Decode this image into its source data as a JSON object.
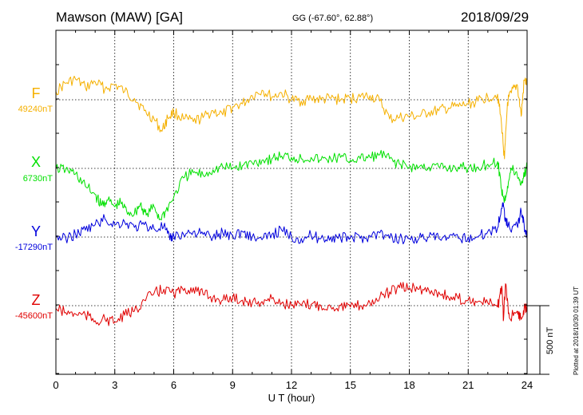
{
  "header": {
    "station": "Mawson (MAW)  [GA]",
    "coords": "GG (-67.60°,  62.88°)",
    "date": "2018/09/29"
  },
  "footer": {
    "plotted": "Plotted at 2018/10/30 01:39 UT"
  },
  "scale": {
    "label": "500 nT"
  },
  "colors": {
    "F": "#f5b000",
    "X": "#00e000",
    "Y": "#0000dd",
    "Z": "#e00000"
  },
  "chart_data": {
    "type": "line",
    "title": "Mawson (MAW)  [GA]",
    "xlabel": "U T (hour)",
    "xlim": [
      0,
      24
    ],
    "xticks": [
      0,
      3,
      6,
      9,
      12,
      15,
      18,
      21,
      24
    ],
    "xtick_labels": [
      "0",
      "3",
      "6",
      "9",
      "12",
      "15",
      "18",
      "21",
      "24"
    ],
    "grid": true,
    "scale_bar_nT": 500,
    "series": [
      {
        "name": "F",
        "baseline_label": "49240nT",
        "baseline": 49240,
        "points": [
          [
            0,
            49300
          ],
          [
            0.5,
            49360
          ],
          [
            1,
            49390
          ],
          [
            1.5,
            49330
          ],
          [
            2,
            49370
          ],
          [
            2.5,
            49320
          ],
          [
            3,
            49350
          ],
          [
            3.5,
            49300
          ],
          [
            4,
            49250
          ],
          [
            4.5,
            49160
          ],
          [
            5,
            49100
          ],
          [
            5.4,
            49010
          ],
          [
            5.7,
            49110
          ],
          [
            6,
            49150
          ],
          [
            6.5,
            49100
          ],
          [
            7,
            49080
          ],
          [
            7.5,
            49110
          ],
          [
            8,
            49160
          ],
          [
            8.5,
            49130
          ],
          [
            9,
            49190
          ],
          [
            9.5,
            49210
          ],
          [
            10,
            49270
          ],
          [
            10.5,
            49310
          ],
          [
            11,
            49260
          ],
          [
            11.5,
            49290
          ],
          [
            12,
            49240
          ],
          [
            12.5,
            49230
          ],
          [
            13,
            49250
          ],
          [
            13.5,
            49240
          ],
          [
            14,
            49250
          ],
          [
            14.5,
            49240
          ],
          [
            15,
            49250
          ],
          [
            15.5,
            49260
          ],
          [
            16,
            49270
          ],
          [
            16.5,
            49230
          ],
          [
            17,
            49100
          ],
          [
            17.5,
            49110
          ],
          [
            18,
            49120
          ],
          [
            18.5,
            49120
          ],
          [
            19,
            49150
          ],
          [
            19.5,
            49160
          ],
          [
            20,
            49180
          ],
          [
            20.5,
            49190
          ],
          [
            21,
            49210
          ],
          [
            21.5,
            49230
          ],
          [
            22,
            49260
          ],
          [
            22.5,
            49280
          ],
          [
            22.7,
            49060
          ],
          [
            22.85,
            48810
          ],
          [
            23,
            49220
          ],
          [
            23.2,
            49290
          ],
          [
            23.5,
            49350
          ],
          [
            23.7,
            49120
          ],
          [
            23.85,
            49380
          ],
          [
            24,
            49360
          ]
        ]
      },
      {
        "name": "X",
        "baseline_label": "6730nT",
        "baseline": 6730,
        "points": [
          [
            0,
            6730
          ],
          [
            0.5,
            6720
          ],
          [
            1,
            6690
          ],
          [
            1.5,
            6600
          ],
          [
            2,
            6540
          ],
          [
            2.3,
            6460
          ],
          [
            2.6,
            6500
          ],
          [
            3,
            6450
          ],
          [
            3.3,
            6480
          ],
          [
            3.6,
            6420
          ],
          [
            4,
            6400
          ],
          [
            4.3,
            6470
          ],
          [
            4.6,
            6390
          ],
          [
            5,
            6450
          ],
          [
            5.3,
            6360
          ],
          [
            5.6,
            6420
          ],
          [
            6,
            6520
          ],
          [
            6.5,
            6660
          ],
          [
            7,
            6700
          ],
          [
            7.5,
            6680
          ],
          [
            8,
            6720
          ],
          [
            8.5,
            6740
          ],
          [
            9,
            6730
          ],
          [
            9.5,
            6750
          ],
          [
            10,
            6770
          ],
          [
            10.5,
            6790
          ],
          [
            11,
            6800
          ],
          [
            11.5,
            6820
          ],
          [
            12,
            6810
          ],
          [
            12.5,
            6800
          ],
          [
            13,
            6810
          ],
          [
            13.5,
            6790
          ],
          [
            14,
            6800
          ],
          [
            14.5,
            6810
          ],
          [
            15,
            6790
          ],
          [
            15.5,
            6800
          ],
          [
            16,
            6810
          ],
          [
            16.5,
            6830
          ],
          [
            17,
            6800
          ],
          [
            17.5,
            6760
          ],
          [
            18,
            6740
          ],
          [
            18.5,
            6740
          ],
          [
            19,
            6740
          ],
          [
            19.5,
            6740
          ],
          [
            20,
            6730
          ],
          [
            20.5,
            6740
          ],
          [
            21,
            6730
          ],
          [
            21.5,
            6740
          ],
          [
            22,
            6760
          ],
          [
            22.5,
            6780
          ],
          [
            22.7,
            6580
          ],
          [
            22.85,
            6490
          ],
          [
            23,
            6600
          ],
          [
            23.2,
            6730
          ],
          [
            23.5,
            6680
          ],
          [
            23.7,
            6620
          ],
          [
            23.85,
            6680
          ],
          [
            24,
            6740
          ]
        ]
      },
      {
        "name": "Y",
        "baseline_label": "-17290nT",
        "baseline": -17290,
        "points": [
          [
            0,
            -17290
          ],
          [
            0.5,
            -17300
          ],
          [
            1,
            -17270
          ],
          [
            1.5,
            -17240
          ],
          [
            2,
            -17200
          ],
          [
            2.5,
            -17160
          ],
          [
            3,
            -17200
          ],
          [
            3.5,
            -17180
          ],
          [
            4,
            -17220
          ],
          [
            4.5,
            -17200
          ],
          [
            5,
            -17230
          ],
          [
            5.5,
            -17210
          ],
          [
            5.8,
            -17310
          ],
          [
            6,
            -17280
          ],
          [
            6.5,
            -17270
          ],
          [
            7,
            -17250
          ],
          [
            7.5,
            -17270
          ],
          [
            8,
            -17290
          ],
          [
            8.5,
            -17260
          ],
          [
            9,
            -17280
          ],
          [
            9.5,
            -17250
          ],
          [
            10,
            -17290
          ],
          [
            10.5,
            -17310
          ],
          [
            11,
            -17270
          ],
          [
            11.5,
            -17240
          ],
          [
            12,
            -17290
          ],
          [
            12.5,
            -17300
          ],
          [
            13,
            -17280
          ],
          [
            13.5,
            -17300
          ],
          [
            14,
            -17290
          ],
          [
            14.5,
            -17300
          ],
          [
            15,
            -17290
          ],
          [
            15.5,
            -17300
          ],
          [
            16,
            -17280
          ],
          [
            16.5,
            -17260
          ],
          [
            17,
            -17300
          ],
          [
            17.5,
            -17300
          ],
          [
            18,
            -17300
          ],
          [
            18.5,
            -17300
          ],
          [
            19,
            -17290
          ],
          [
            19.5,
            -17300
          ],
          [
            20,
            -17300
          ],
          [
            20.5,
            -17300
          ],
          [
            21,
            -17290
          ],
          [
            21.5,
            -17290
          ],
          [
            22,
            -17250
          ],
          [
            22.5,
            -17220
          ],
          [
            22.75,
            -17040
          ],
          [
            22.9,
            -17150
          ],
          [
            23.1,
            -17220
          ],
          [
            23.5,
            -17210
          ],
          [
            23.7,
            -17100
          ],
          [
            23.85,
            -17200
          ],
          [
            24,
            -17300
          ]
        ]
      },
      {
        "name": "Z",
        "baseline_label": "-45600nT",
        "baseline": -45600,
        "points": [
          [
            0,
            -45620
          ],
          [
            0.5,
            -45650
          ],
          [
            1,
            -45660
          ],
          [
            1.5,
            -45670
          ],
          [
            2,
            -45710
          ],
          [
            2.5,
            -45700
          ],
          [
            3,
            -45720
          ],
          [
            3.5,
            -45670
          ],
          [
            4,
            -45640
          ],
          [
            4.5,
            -45560
          ],
          [
            5,
            -45510
          ],
          [
            5.5,
            -45480
          ],
          [
            6,
            -45510
          ],
          [
            6.5,
            -45490
          ],
          [
            7,
            -45470
          ],
          [
            7.5,
            -45520
          ],
          [
            8,
            -45540
          ],
          [
            8.5,
            -45560
          ],
          [
            9,
            -45540
          ],
          [
            9.5,
            -45560
          ],
          [
            10,
            -45580
          ],
          [
            10.5,
            -45570
          ],
          [
            11,
            -45550
          ],
          [
            11.5,
            -45580
          ],
          [
            12,
            -45600
          ],
          [
            12.5,
            -45600
          ],
          [
            13,
            -45590
          ],
          [
            13.5,
            -45600
          ],
          [
            14,
            -45610
          ],
          [
            14.5,
            -45600
          ],
          [
            15,
            -45610
          ],
          [
            15.5,
            -45600
          ],
          [
            16,
            -45580
          ],
          [
            16.5,
            -45540
          ],
          [
            17,
            -45500
          ],
          [
            17.5,
            -45470
          ],
          [
            18,
            -45470
          ],
          [
            18.5,
            -45480
          ],
          [
            19,
            -45490
          ],
          [
            19.5,
            -45500
          ],
          [
            20,
            -45540
          ],
          [
            20.5,
            -45550
          ],
          [
            21,
            -45560
          ],
          [
            21.5,
            -45570
          ],
          [
            22,
            -45580
          ],
          [
            22.5,
            -45610
          ],
          [
            22.7,
            -45460
          ],
          [
            22.8,
            -45700
          ],
          [
            22.9,
            -45440
          ],
          [
            23.1,
            -45690
          ],
          [
            23.5,
            -45640
          ],
          [
            23.7,
            -45700
          ],
          [
            23.85,
            -45620
          ],
          [
            24,
            -45610
          ]
        ]
      }
    ]
  }
}
